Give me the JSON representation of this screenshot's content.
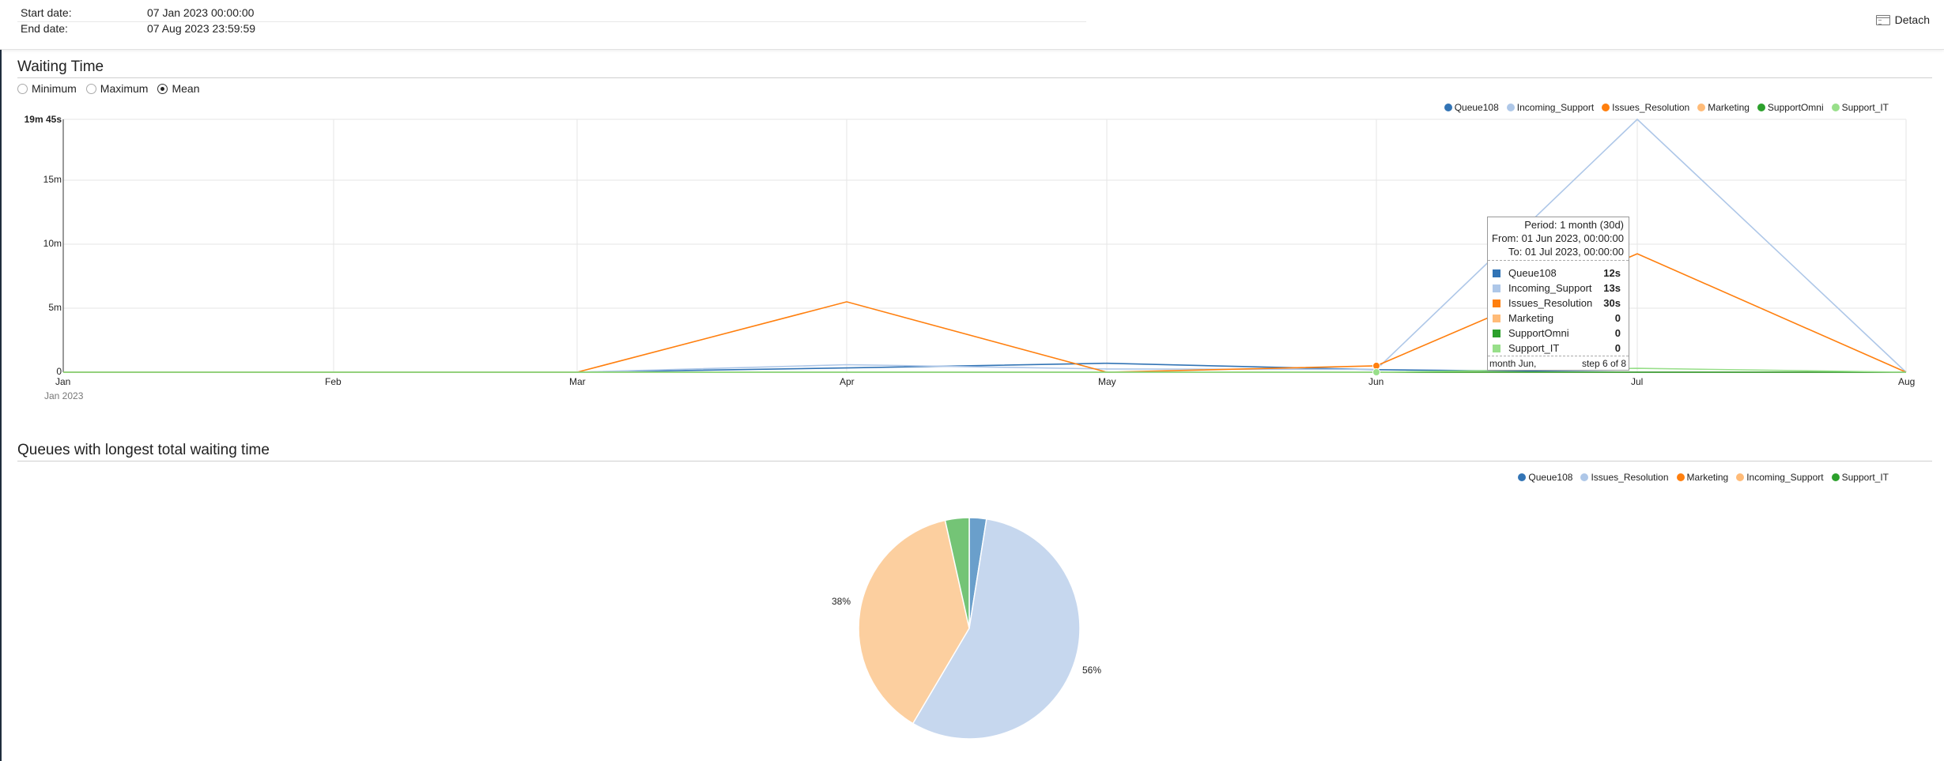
{
  "header": {
    "start_label": "Start date:",
    "start_value": "07 Jan 2023 00:00:00",
    "end_label": "End date:",
    "end_value": "07 Aug 2023 23:59:59",
    "detach_label": "Detach"
  },
  "waiting_time": {
    "title": "Waiting Time",
    "radios": [
      {
        "label": "Minimum",
        "checked": false
      },
      {
        "label": "Maximum",
        "checked": false
      },
      {
        "label": "Mean",
        "checked": true
      }
    ],
    "legend": [
      {
        "name": "Queue108",
        "color": "#3274b5"
      },
      {
        "name": "Incoming_Support",
        "color": "#aec7e8"
      },
      {
        "name": "Issues_Resolution",
        "color": "#ff7f0e"
      },
      {
        "name": "Marketing",
        "color": "#ffbb78"
      },
      {
        "name": "SupportOmni",
        "color": "#2ca02c"
      },
      {
        "name": "Support_IT",
        "color": "#98df8a"
      }
    ],
    "y_ticks": [
      "19m 45s",
      "15m",
      "10m",
      "5m",
      "0"
    ],
    "x_ticks": [
      "Jan",
      "Feb",
      "Mar",
      "Apr",
      "May",
      "Jun",
      "Jul",
      "Aug"
    ],
    "x_sublabel": "Jan 2023",
    "tooltip": {
      "period": "Period: 1 month (30d)",
      "from": "From: 01 Jun 2023, 00:00:00",
      "to": "To: 01 Jul 2023, 00:00:00",
      "rows": [
        {
          "name": "Queue108",
          "value": "12s",
          "color": "#3274b5"
        },
        {
          "name": "Incoming_Support",
          "value": "13s",
          "color": "#aec7e8"
        },
        {
          "name": "Issues_Resolution",
          "value": "30s",
          "color": "#ff7f0e"
        },
        {
          "name": "Marketing",
          "value": "0",
          "color": "#ffbb78"
        },
        {
          "name": "SupportOmni",
          "value": "0",
          "color": "#2ca02c"
        },
        {
          "name": "Support_IT",
          "value": "0",
          "color": "#98df8a"
        }
      ],
      "footer_left": "month Jun,",
      "footer_right": "step 6 of 8"
    }
  },
  "queues": {
    "title": "Queues with longest total waiting time",
    "legend": [
      {
        "name": "Queue108",
        "color": "#3274b5"
      },
      {
        "name": "Issues_Resolution",
        "color": "#aec7e8"
      },
      {
        "name": "Marketing",
        "color": "#ff7f0e"
      },
      {
        "name": "Incoming_Support",
        "color": "#ffbb78"
      },
      {
        "name": "Support_IT",
        "color": "#2ca02c"
      }
    ],
    "pie_labels": [
      "38%",
      "56%"
    ]
  },
  "chart_data": [
    {
      "type": "line",
      "title": "Waiting Time",
      "x": [
        "Jan",
        "Feb",
        "Mar",
        "Apr",
        "May",
        "Jun",
        "Jul",
        "Aug"
      ],
      "y_unit": "seconds",
      "ylim": [
        0,
        1185
      ],
      "grid": true,
      "legend_position": "top-right",
      "series": [
        {
          "name": "Queue108",
          "color": "#3274b5",
          "values": [
            0,
            0,
            0,
            20,
            42,
            12,
            0,
            0
          ]
        },
        {
          "name": "Incoming_Support",
          "color": "#aec7e8",
          "values": [
            0,
            0,
            0,
            35,
            15,
            13,
            1185,
            0
          ]
        },
        {
          "name": "Issues_Resolution",
          "color": "#ff7f0e",
          "values": [
            0,
            0,
            0,
            330,
            0,
            30,
            555,
            0
          ]
        },
        {
          "name": "Marketing",
          "color": "#ffbb78",
          "values": [
            0,
            0,
            0,
            0,
            0,
            0,
            0,
            0
          ]
        },
        {
          "name": "SupportOmni",
          "color": "#2ca02c",
          "values": [
            0,
            0,
            0,
            0,
            0,
            0,
            0,
            0
          ]
        },
        {
          "name": "Support_IT",
          "color": "#98df8a",
          "values": [
            0,
            0,
            0,
            0,
            0,
            0,
            18,
            0
          ]
        }
      ]
    },
    {
      "type": "pie",
      "title": "Queues with longest total waiting time",
      "legend_position": "top-right",
      "slices": [
        {
          "name": "Queue108",
          "value": 2.5,
          "color": "#6a9fcb"
        },
        {
          "name": "Issues_Resolution",
          "value": 56,
          "color": "#c6d7ee",
          "label": "56%"
        },
        {
          "name": "Incoming_Support",
          "value": 38,
          "color": "#fccf9f",
          "label": "38%"
        },
        {
          "name": "Support_IT",
          "value": 3.5,
          "color": "#74c476"
        }
      ]
    }
  ]
}
